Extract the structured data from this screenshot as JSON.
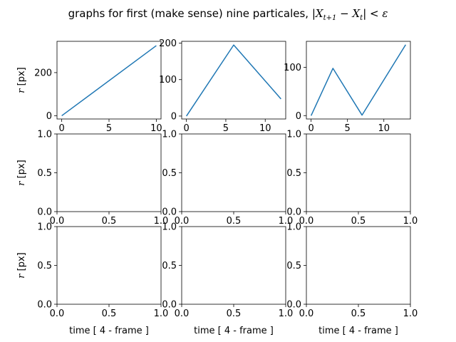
{
  "figure": {
    "title_prefix": "graphs for first (make sense) nine particales, ",
    "title_math": {
      "bar_left": "|",
      "x1": "X",
      "sub1": "t+1",
      "minus": " − ",
      "x2": "X",
      "sub2": "t",
      "bar_right": "|",
      "lt": " < ",
      "eps": "ε"
    }
  },
  "chart_data": [
    {
      "type": "line",
      "x": [
        0,
        10
      ],
      "y": [
        0,
        325
      ],
      "xlim": [
        -0.5,
        10.5
      ],
      "ylim": [
        -15,
        345
      ],
      "xticks": [
        0,
        5,
        10
      ],
      "yticks": [
        0,
        200
      ],
      "ytick_labels": [
        "0",
        "200"
      ],
      "ylabel": "r [px]",
      "xlabel": "",
      "color": "#1f77b4"
    },
    {
      "type": "line",
      "x": [
        0,
        6,
        12
      ],
      "y": [
        0,
        195,
        47
      ],
      "xlim": [
        -0.6,
        12.6
      ],
      "ylim": [
        -8,
        205
      ],
      "xticks": [
        0,
        5,
        10
      ],
      "yticks": [
        0,
        100,
        200
      ],
      "ytick_labels": [
        "0",
        "100",
        "200"
      ],
      "ylabel": "",
      "xlabel": "",
      "color": "#1f77b4"
    },
    {
      "type": "line",
      "x": [
        0,
        3,
        7,
        13
      ],
      "y": [
        0,
        98,
        1,
        147
      ],
      "xlim": [
        -0.65,
        13.65
      ],
      "ylim": [
        -7,
        154
      ],
      "xticks": [
        0,
        5,
        10
      ],
      "yticks": [
        0,
        100
      ],
      "ytick_labels": [
        "0",
        "100"
      ],
      "ylabel": "",
      "xlabel": "",
      "color": "#1f77b4"
    },
    {
      "type": "line",
      "x": [],
      "y": [],
      "xlim": [
        0,
        1
      ],
      "ylim": [
        0,
        1
      ],
      "xticks": [
        0,
        0.5,
        1
      ],
      "xtick_labels": [
        "0.0",
        "0.5",
        "1.0"
      ],
      "yticks": [
        0,
        0.5,
        1
      ],
      "ytick_labels": [
        "0.0",
        "0.5",
        "1.0"
      ],
      "ylabel": "r [px]",
      "xlabel": ""
    },
    {
      "type": "line",
      "x": [],
      "y": [],
      "xlim": [
        0,
        1
      ],
      "ylim": [
        0,
        1
      ],
      "xticks": [
        0,
        0.5,
        1
      ],
      "xtick_labels": [
        "0.0",
        "0.5",
        "1.0"
      ],
      "yticks": [
        0,
        0.5,
        1
      ],
      "ytick_labels": [
        "0.0",
        "0.5",
        "1.0"
      ],
      "ylabel": "",
      "xlabel": ""
    },
    {
      "type": "line",
      "x": [],
      "y": [],
      "xlim": [
        0,
        1
      ],
      "ylim": [
        0,
        1
      ],
      "xticks": [
        0,
        0.5,
        1
      ],
      "xtick_labels": [
        "0.0",
        "0.5",
        "1.0"
      ],
      "yticks": [
        0,
        0.5,
        1
      ],
      "ytick_labels": [
        "0.0",
        "0.5",
        "1.0"
      ],
      "ylabel": "",
      "xlabel": ""
    },
    {
      "type": "line",
      "x": [],
      "y": [],
      "xlim": [
        0,
        1
      ],
      "ylim": [
        0,
        1
      ],
      "xticks": [
        0,
        0.5,
        1
      ],
      "xtick_labels": [
        "0.0",
        "0.5",
        "1.0"
      ],
      "yticks": [
        0,
        0.5,
        1
      ],
      "ytick_labels": [
        "0.0",
        "0.5",
        "1.0"
      ],
      "ylabel": "r [px]",
      "xlabel": "time [ 4 - frame ]"
    },
    {
      "type": "line",
      "x": [],
      "y": [],
      "xlim": [
        0,
        1
      ],
      "ylim": [
        0,
        1
      ],
      "xticks": [
        0,
        0.5,
        1
      ],
      "xtick_labels": [
        "0.0",
        "0.5",
        "1.0"
      ],
      "yticks": [
        0,
        0.5,
        1
      ],
      "ytick_labels": [
        "0.0",
        "0.5",
        "1.0"
      ],
      "ylabel": "",
      "xlabel": "time [ 4 - frame ]"
    },
    {
      "type": "line",
      "x": [],
      "y": [],
      "xlim": [
        0,
        1
      ],
      "ylim": [
        0,
        1
      ],
      "xticks": [
        0,
        0.5,
        1
      ],
      "xtick_labels": [
        "0.0",
        "0.5",
        "1.0"
      ],
      "yticks": [
        0,
        0.5,
        1
      ],
      "ytick_labels": [
        "0.0",
        "0.5",
        "1.0"
      ],
      "ylabel": "",
      "xlabel": "time [ 4 - frame ]"
    }
  ]
}
